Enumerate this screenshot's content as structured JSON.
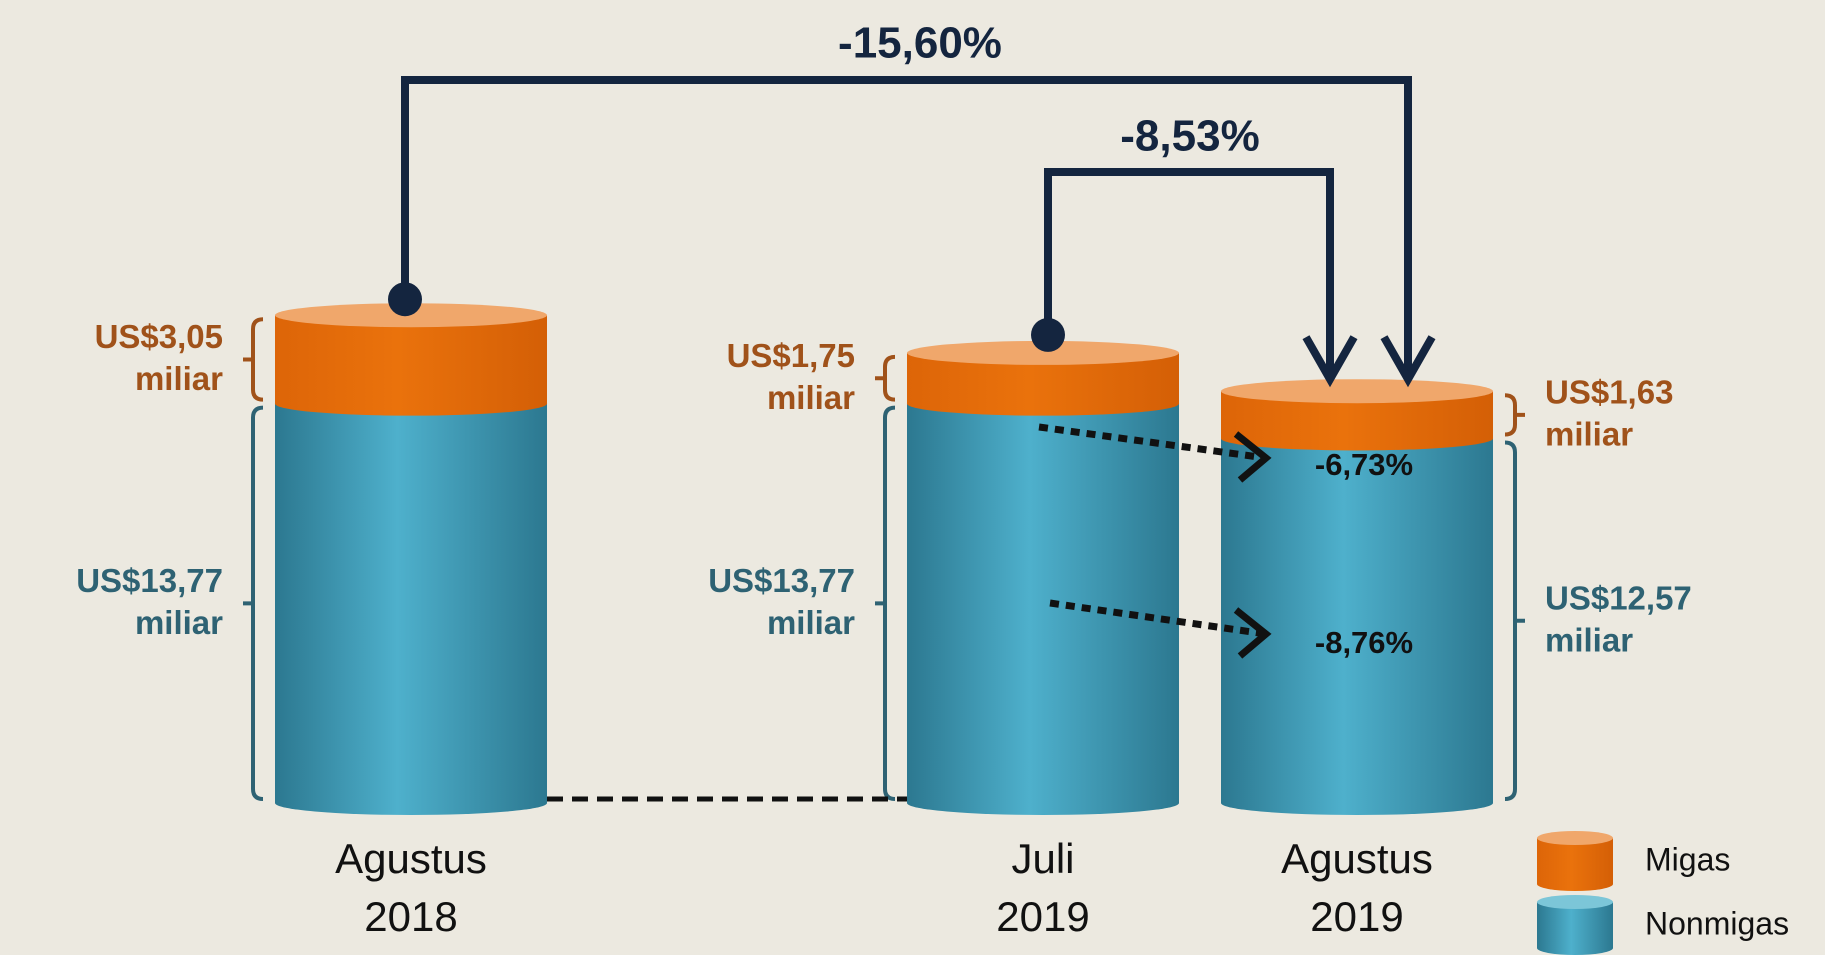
{
  "chart_data": {
    "type": "stacked_cylinder",
    "categories": [
      [
        "Agustus",
        "2018"
      ],
      [
        "Juli",
        "2019"
      ],
      [
        "Agustus",
        "2019"
      ]
    ],
    "series": [
      {
        "name": "Nonmigas",
        "color": "#4aaac6",
        "values": [
          13.77,
          13.77,
          12.57
        ],
        "value_labels": [
          [
            "US$13,77",
            "miliar"
          ],
          [
            "US$13,77",
            "miliar"
          ],
          [
            "US$12,57",
            "miliar"
          ]
        ]
      },
      {
        "name": "Migas",
        "color": "#e46c0a",
        "values": [
          3.05,
          1.75,
          1.63
        ],
        "value_labels": [
          [
            "US$3,05",
            "miliar"
          ],
          [
            "US$1,75",
            "miliar"
          ],
          [
            "US$1,63",
            "miliar"
          ]
        ]
      }
    ],
    "annotations": [
      "-15,60%",
      "-8,53%",
      "-6,73%",
      "-8,76%"
    ]
  }
}
